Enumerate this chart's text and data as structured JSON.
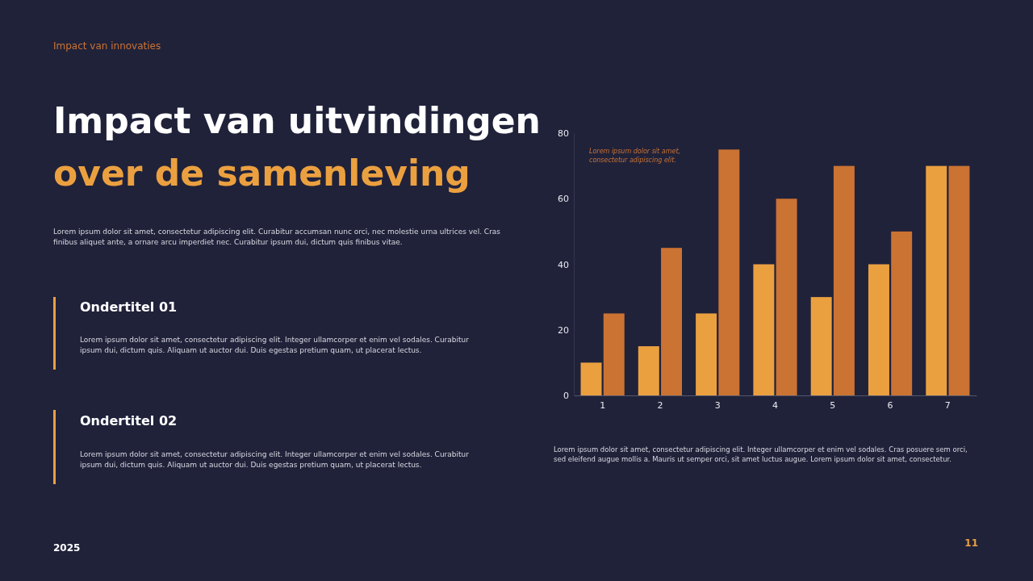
{
  "chart_data": {
    "type": "bar",
    "title": "Impact van uitvindingen",
    "subtitle": "over de samenleving",
    "annotations": [
      "Impact van innovaties",
      "Lorem ipsum dolor sit amet, consectetur adipiscing elit. Curabitur accumsan nunc orci, nec molestie urna ultrices vel. Cras finibus aliquet ante, a ornare arcu imperdiet nec.  Curabitur ipsum dui, dictum quis finibus vitae.",
      "Ondertitel 01",
      "Lorem ipsum dolor sit amet, consectetur adipiscing elit. Integer ullamcorper et enim vel sodales.  Curabitur ipsum dui, dictum quis. Aliquam ut auctor dui. Duis egestas pretium quam, ut placerat lectus.",
      "Ondertitel 02",
      "Lorem ipsum dolor sit amet, consectetur adipiscing elit. Integer ullamcorper et enim vel sodales.  Curabitur ipsum dui, dictum quis. Aliquam ut auctor dui. Duis egestas pretium quam, ut placerat lectus.",
      "Lorem ipsum dolor sit amet, consectetur adipiscing elit.",
      "Lorem ipsum dolor sit amet, consectetur adipiscing elit. Integer ullamcorper et enim vel sodales. Cras posuere sem orci, sed eleifend augue mollis a. Mauris ut semper orci, sit amet luctus augue. Lorem ipsum dolor sit amet, consectetur.",
      "2025",
      "11"
    ],
    "categories": [
      "1",
      "2",
      "3",
      "4",
      "5",
      "6",
      "7"
    ],
    "series": [
      {
        "color": "#eba040",
        "values": [
          10,
          15,
          25,
          40,
          30,
          40,
          70
        ]
      },
      {
        "color": "#cb7333",
        "values": [
          25,
          45,
          75,
          60,
          70,
          50,
          70
        ]
      }
    ],
    "ylim": [
      0,
      80
    ],
    "yticks": [
      0,
      20,
      40,
      60,
      80
    ],
    "grid": false,
    "legend": false
  }
}
